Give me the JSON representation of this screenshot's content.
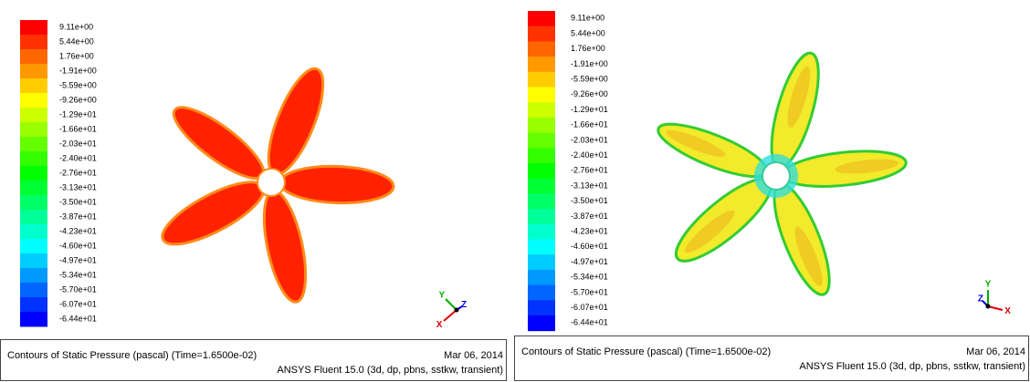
{
  "panels": [
    {
      "legend": [
        "9.11e+00",
        "5.44e+00",
        "1.76e+00",
        "-1.91e+00",
        "-5.59e+00",
        "-9.26e+00",
        "-1.29e+01",
        "-1.66e+01",
        "-2.03e+01",
        "-2.40e+01",
        "-2.76e+01",
        "-3.13e+01",
        "-3.50e+01",
        "-3.87e+01",
        "-4.23e+01",
        "-4.60e+01",
        "-4.97e+01",
        "-5.34e+01",
        "-5.70e+01",
        "-6.07e+01",
        "-6.44e+01"
      ],
      "caption": "Contours of Static Pressure (pascal)  (Time=1.6500e-02)",
      "date": "Mar 06, 2014",
      "software": "ANSYS Fluent 15.0 (3d, dp, pbns, sstkw, transient)",
      "axes": {
        "x": "X",
        "y": "Y",
        "z": "Z"
      }
    },
    {
      "legend": [
        "9.11e+00",
        "5.44e+00",
        "1.76e+00",
        "-1.91e+00",
        "-5.59e+00",
        "-9.26e+00",
        "-1.29e+01",
        "-1.66e+01",
        "-2.03e+01",
        "-2.40e+01",
        "-2.76e+01",
        "-3.13e+01",
        "-3.50e+01",
        "-3.87e+01",
        "-4.23e+01",
        "-4.60e+01",
        "-4.97e+01",
        "-5.34e+01",
        "-5.70e+01",
        "-6.07e+01",
        "-6.44e+01"
      ],
      "caption": "Contours of Static Pressure (pascal)  (Time=1.6500e-02)",
      "date": "Mar 06, 2014",
      "software": "ANSYS Fluent 15.0 (3d, dp, pbns, sstkw, transient)",
      "axes": {
        "x": "X",
        "y": "Y",
        "z": "Z"
      }
    }
  ]
}
